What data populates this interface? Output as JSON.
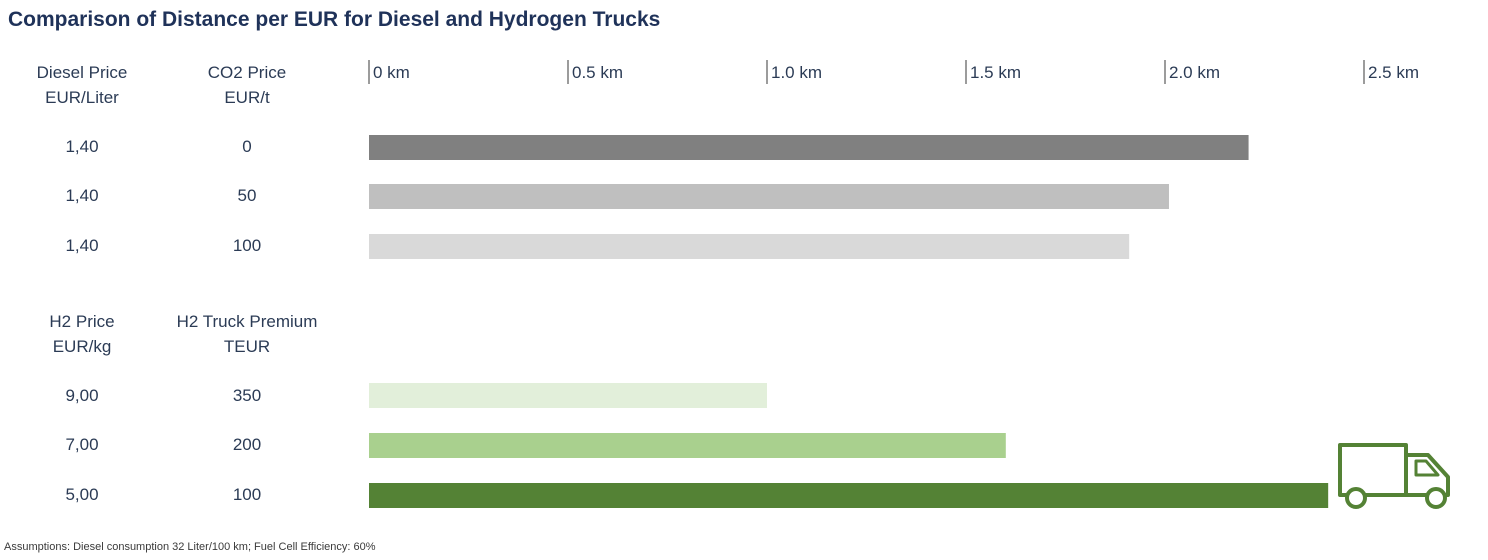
{
  "title": "Comparison of Distance per EUR for Diesel and Hydrogen Trucks",
  "diesel_header": {
    "col1": [
      "Diesel Price",
      "EUR/Liter"
    ],
    "col2": [
      "CO2 Price",
      "EUR/t"
    ]
  },
  "h2_header": {
    "col1": [
      "H2 Price",
      "EUR/kg"
    ],
    "col2": [
      "H2 Truck Premium",
      "TEUR"
    ]
  },
  "footnote": "Assumptions: Diesel consumption 32 Liter/100 km; Fuel Cell Efficiency: 60%",
  "chart_data": {
    "type": "bar",
    "orientation": "horizontal",
    "title": "Comparison of Distance per EUR for Diesel and Hydrogen Trucks",
    "xlim": [
      0,
      2.5
    ],
    "xticks": [
      0,
      0.5,
      1.0,
      1.5,
      2.0,
      2.5
    ],
    "xtick_labels": [
      "0 km",
      "0.5 km",
      "1.0 km",
      "1.5 km",
      "2.0 km",
      "2.5 km"
    ],
    "grid": false,
    "groups": [
      {
        "name": "diesel",
        "rows": [
          {
            "diesel_price": "1,40",
            "co2_price": "0",
            "value": 2.21,
            "color": "#808080"
          },
          {
            "diesel_price": "1,40",
            "co2_price": "50",
            "value": 2.01,
            "color": "#bfbfbf"
          },
          {
            "diesel_price": "1,40",
            "co2_price": "100",
            "value": 1.91,
            "color": "#d9d9d9"
          }
        ]
      },
      {
        "name": "hydrogen",
        "rows": [
          {
            "h2_price": "9,00",
            "truck_premium": "350",
            "value": 1.0,
            "color": "#e2efda"
          },
          {
            "h2_price": "7,00",
            "truck_premium": "200",
            "value": 1.6,
            "color": "#a9d08e"
          },
          {
            "h2_price": "5,00",
            "truck_premium": "100",
            "value": 2.41,
            "color": "#548235"
          }
        ]
      }
    ]
  },
  "icons": {
    "truck": "truck-icon",
    "truck_color": "#548235"
  }
}
